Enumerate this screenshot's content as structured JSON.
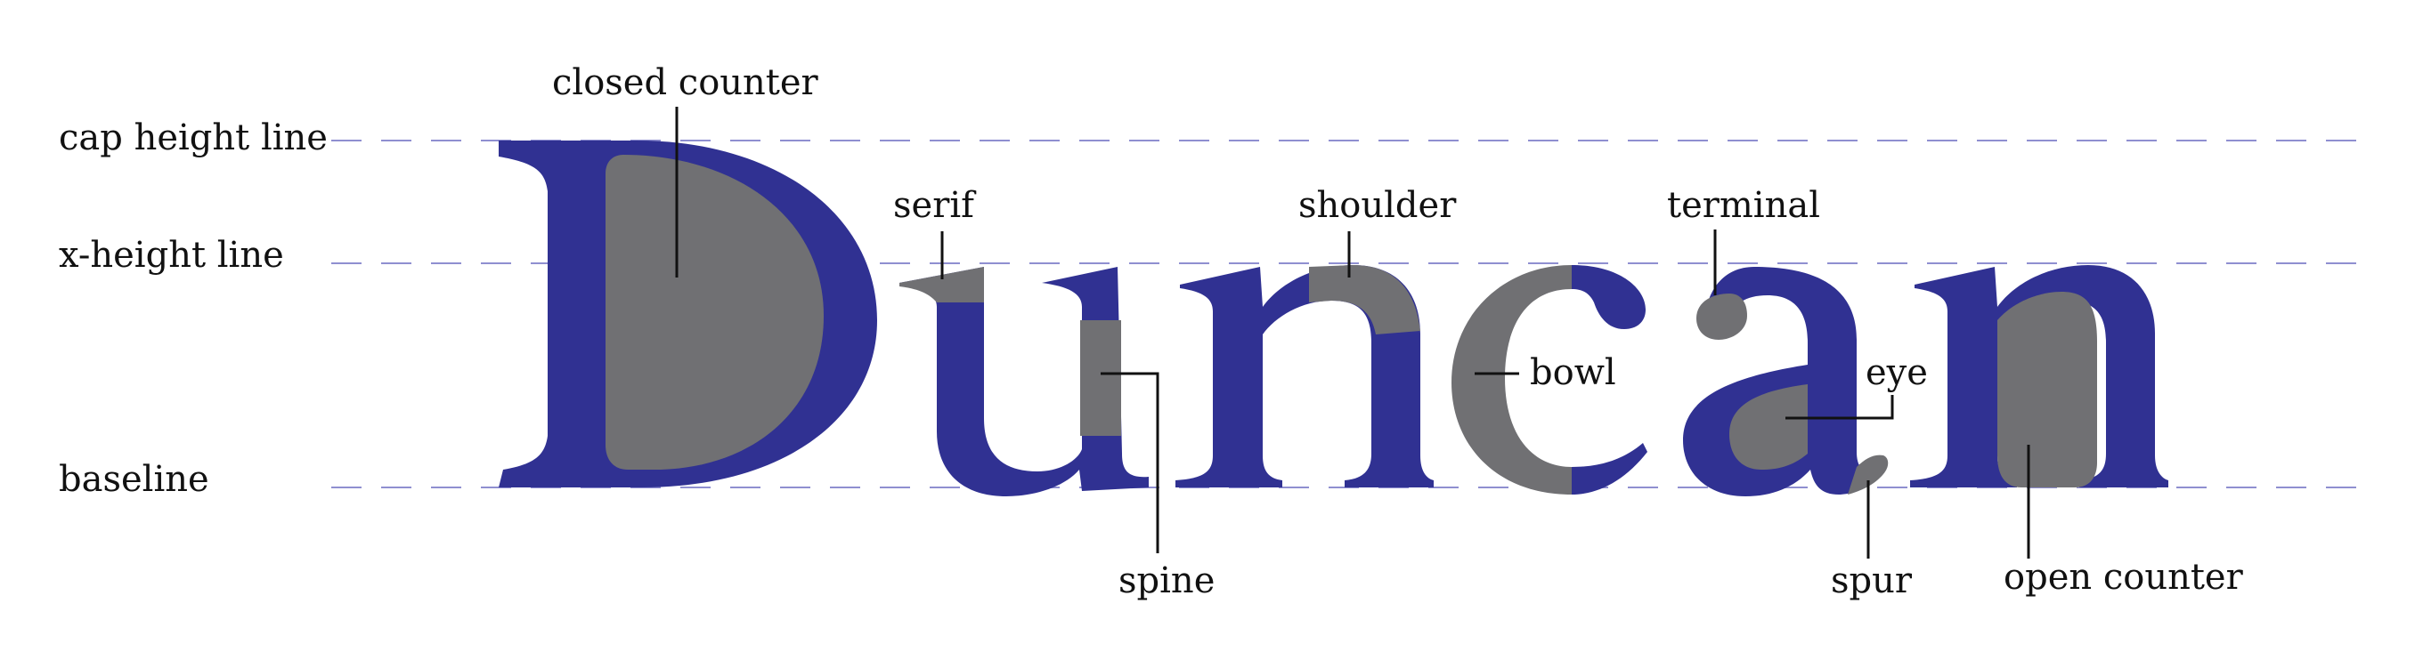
{
  "word": "Duncan",
  "colors": {
    "letter": "#303192",
    "highlight": "#707073",
    "guide": "#8f8fd0",
    "text": "#111111"
  },
  "lines": {
    "cap_height": "cap height line",
    "x_height": "x-height line",
    "baseline": "baseline"
  },
  "labels": {
    "closed_counter": "closed counter",
    "serif": "serif",
    "shoulder": "shoulder",
    "terminal": "terminal",
    "bowl": "bowl",
    "eye": "eye",
    "spine": "spine",
    "spur": "spur",
    "open_counter": "open counter"
  }
}
